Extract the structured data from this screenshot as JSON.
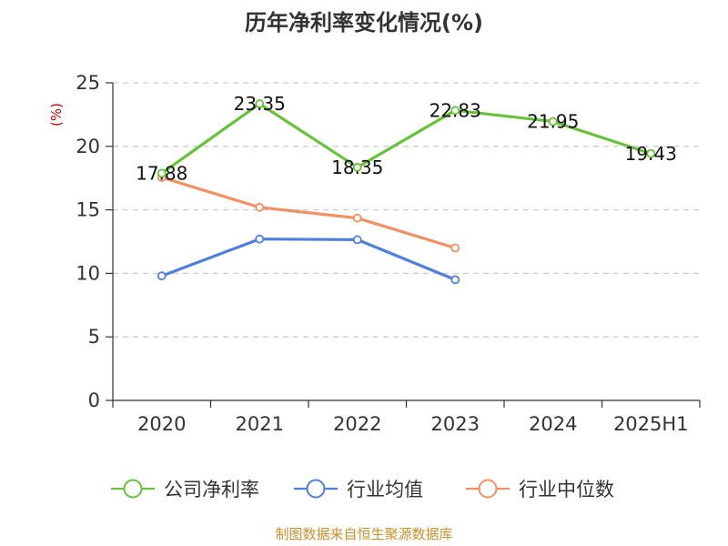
{
  "chart_data": {
    "type": "line",
    "title": "历年净利率变化情况(%)",
    "ylabel": "(%)",
    "categories": [
      "2020",
      "2021",
      "2022",
      "2023",
      "2024",
      "2025H1"
    ],
    "yticks": [
      0,
      5,
      10,
      15,
      20,
      25
    ],
    "ylim": [
      0,
      25
    ],
    "grid": "horizontal dashed",
    "legend_position": "bottom",
    "series": [
      {
        "name": "公司净利率",
        "color": "#67c23a",
        "values": [
          17.88,
          23.35,
          18.35,
          22.83,
          21.95,
          19.43
        ],
        "labels": [
          "17.88",
          "23.35",
          "18.35",
          "22.83",
          "21.95",
          "19.43"
        ]
      },
      {
        "name": "行业均值",
        "color": "#4f7fdc",
        "values": [
          9.8,
          12.7,
          12.65,
          9.5,
          null,
          null
        ]
      },
      {
        "name": "行业中位数",
        "color": "#f39062",
        "values": [
          17.55,
          15.2,
          14.35,
          12.0,
          null,
          null
        ]
      }
    ]
  },
  "colors": {
    "title": "#333333",
    "ylabel": "#cc0000",
    "source": "#c8902c",
    "grid": "#cccccc",
    "axis": "#333333"
  },
  "source_text": "制图数据来自恒生聚源数据库"
}
